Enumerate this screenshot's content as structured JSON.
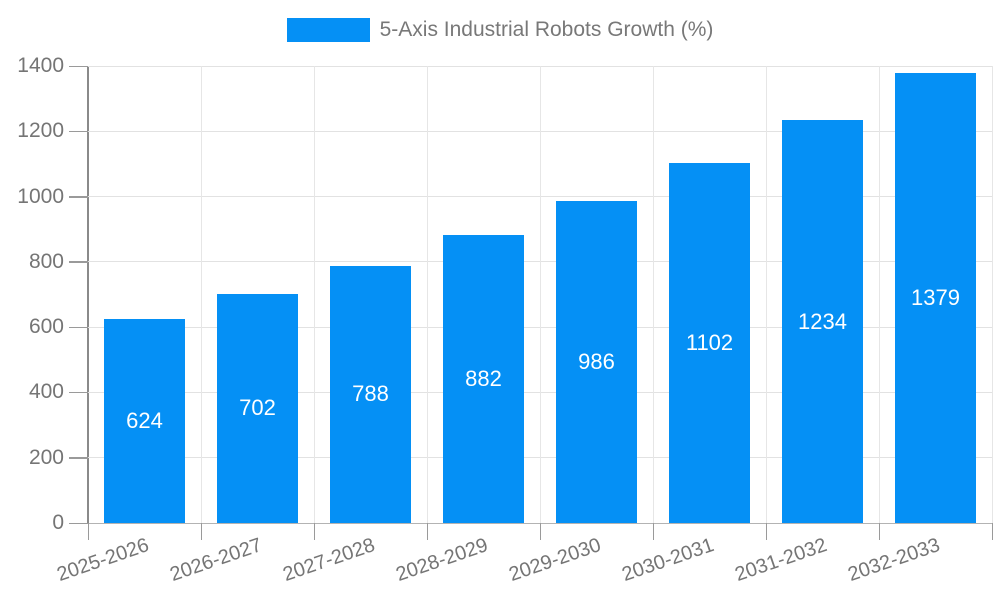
{
  "legend": {
    "label": "5-Axis Industrial Robots Growth (%)"
  },
  "chart_data": {
    "type": "bar",
    "title": "5-Axis Industrial Robots Growth (%)",
    "series_name": "5-Axis Industrial Robots Growth (%)",
    "categories": [
      "2025-2026",
      "2026-2027",
      "2027-2028",
      "2028-2029",
      "2029-2030",
      "2030-2031",
      "2031-2032",
      "2032-2033"
    ],
    "values": [
      624,
      702,
      788,
      882,
      986,
      1102,
      1234,
      1379
    ],
    "value_labels": [
      "624",
      "702",
      "788",
      "882",
      "986",
      "1102",
      "1234",
      "1379"
    ],
    "xlabel": "",
    "ylabel": "",
    "ylim": [
      0,
      1400
    ],
    "yticks": [
      0,
      200,
      400,
      600,
      800,
      1000,
      1200,
      1400
    ],
    "grid": true,
    "legend_position": "top",
    "x_label_rotation_deg": -19,
    "colors": {
      "bar": "#0590f5",
      "bar_label": "#ffffff",
      "axis_text": "#757575",
      "legend_text": "#787878",
      "gridline": "#e2e2e2",
      "axis_line": "#8a8a8a",
      "baseline": "#b3b3b3",
      "tick": "#9a9a9a",
      "background": "#ffffff"
    }
  }
}
